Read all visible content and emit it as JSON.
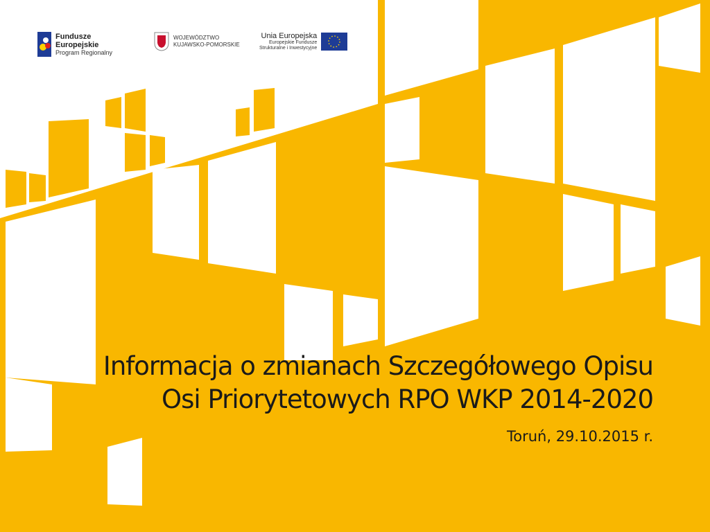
{
  "logos": {
    "fe": {
      "line1": "Fundusze",
      "line2": "Europejskie",
      "line3": "Program Regionalny"
    },
    "region": {
      "line1": "WOJEWÓDZTWO",
      "line2": "KUJAWSKO-POMORSKIE"
    },
    "eu": {
      "line1": "Unia Europejska",
      "line2": "Europejskie Fundusze",
      "line3": "Strukturalne i Inwestycyjne"
    }
  },
  "slide": {
    "title_line1": "Informacja o zmianach Szczegółowego Opisu",
    "title_line2": "Osi Priorytetowych RPO WKP 2014-2020",
    "subtitle": "Toruń, 29.10.2015 r."
  },
  "colors": {
    "accent": "#F9B700",
    "eu_blue": "#1E3C96"
  }
}
